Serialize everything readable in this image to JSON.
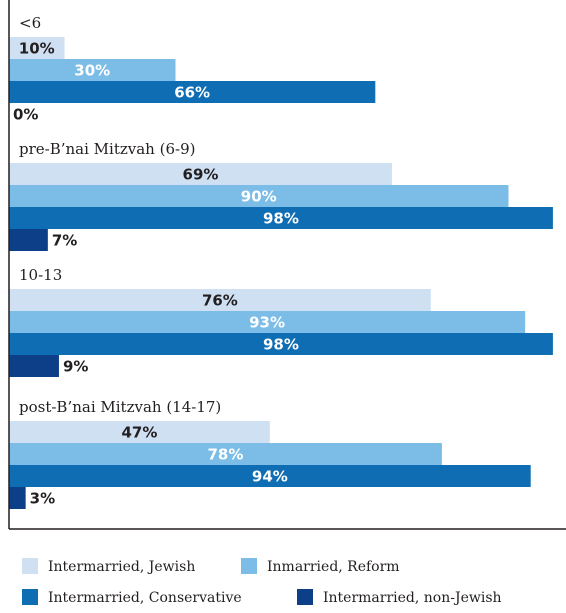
{
  "chart_data": {
    "type": "bar",
    "orientation": "horizontal",
    "unit": "%",
    "xlim": [
      0,
      100
    ],
    "grid": false,
    "legend_position": "bottom",
    "categories": [
      "<6",
      "pre-B’nai Mitzvah (6-9)",
      "10-13",
      "post-B’nai Mitzvah (14-17)"
    ],
    "series": [
      {
        "name": "Intermarried, Jewish",
        "color": "#cfe0f3",
        "label_color": "#231f20",
        "values": [
          10,
          69,
          76,
          47
        ]
      },
      {
        "name": "Inmarried, Reform",
        "color": "#7cbde8",
        "label_color": "#ffffff",
        "values": [
          30,
          90,
          93,
          78
        ]
      },
      {
        "name": "Intermarried, Conservative",
        "color": "#0f6db4",
        "label_color": "#ffffff",
        "values": [
          66,
          98,
          98,
          94
        ]
      },
      {
        "name": "Intermarried, non-Jewish",
        "color": "#0c3f87",
        "label_color": "#231f20",
        "values": [
          0,
          7,
          9,
          3
        ]
      }
    ],
    "data_labels": [
      [
        "10%",
        "30%",
        "66%",
        "0%"
      ],
      [
        "69%",
        "90%",
        "98%",
        "7%"
      ],
      [
        "76%",
        "93%",
        "98%",
        "9%"
      ],
      [
        "47%",
        "78%",
        "94%",
        "3%"
      ]
    ]
  }
}
